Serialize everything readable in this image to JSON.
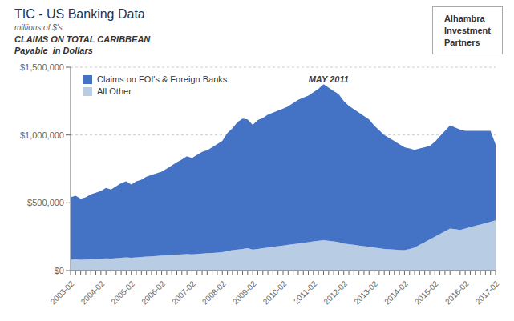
{
  "chart_data": {
    "type": "area",
    "title": "TIC - US Banking Data",
    "subtitle": [
      "millions of $'s",
      "CLAIMS ON TOTAL CARIBBEAN",
      "Payable  in Dollars"
    ],
    "annotations": [
      {
        "text": "MAY 2011",
        "index": 51
      },
      {
        "text": "Alhambra"
      },
      {
        "text": "Investment"
      },
      {
        "text": "Partners"
      }
    ],
    "stacked": true,
    "grid": true,
    "legend": "upper left",
    "categories": [
      "2003-02",
      null,
      null,
      null,
      null,
      null,
      "2004-02",
      null,
      null,
      null,
      null,
      null,
      "2005-02",
      null,
      null,
      null,
      null,
      null,
      "2006-02",
      null,
      null,
      null,
      null,
      null,
      "2007-02",
      null,
      null,
      null,
      null,
      null,
      "2008-02",
      null,
      null,
      null,
      null,
      null,
      "2009-02",
      null,
      null,
      null,
      null,
      null,
      "2010-02",
      null,
      null,
      null,
      null,
      null,
      "2011-02",
      null,
      null,
      null,
      null,
      null,
      "2012-02",
      null,
      null,
      null,
      null,
      null,
      "2013-02",
      null,
      null,
      null,
      null,
      null,
      "2014-02",
      null,
      null,
      null,
      null,
      null,
      "2015-02",
      null,
      null,
      null,
      null,
      null,
      "2016-02",
      null,
      null,
      null,
      null,
      null,
      "2017-02"
    ],
    "series": [
      {
        "name": "All Other",
        "color": "#B8CCE4",
        "values": [
          80000,
          82000,
          80000,
          81000,
          83000,
          85000,
          87000,
          90000,
          88000,
          92000,
          95000,
          98000,
          95000,
          98000,
          100000,
          103000,
          105000,
          108000,
          110000,
          112000,
          115000,
          118000,
          120000,
          123000,
          120000,
          123000,
          126000,
          128000,
          130000,
          133000,
          136000,
          145000,
          150000,
          155000,
          160000,
          165000,
          155000,
          160000,
          165000,
          170000,
          175000,
          180000,
          185000,
          190000,
          195000,
          200000,
          205000,
          210000,
          215000,
          220000,
          225000,
          220000,
          215000,
          210000,
          200000,
          195000,
          190000,
          185000,
          180000,
          175000,
          170000,
          165000,
          160000,
          158000,
          155000,
          152000,
          150000,
          160000,
          170000,
          190000,
          210000,
          230000,
          250000,
          270000,
          290000,
          310000,
          305000,
          300000,
          310000,
          320000,
          330000,
          340000,
          350000,
          360000,
          370000
        ]
      },
      {
        "name": "Claims on FOI's & Foreign Banks",
        "color": "#4472C4",
        "values": [
          460000,
          470000,
          450000,
          460000,
          480000,
          490000,
          500000,
          520000,
          510000,
          530000,
          550000,
          560000,
          540000,
          560000,
          570000,
          590000,
          600000,
          610000,
          620000,
          640000,
          660000,
          680000,
          700000,
          720000,
          710000,
          730000,
          750000,
          760000,
          780000,
          800000,
          820000,
          870000,
          900000,
          940000,
          960000,
          950000,
          920000,
          950000,
          960000,
          980000,
          990000,
          1000000,
          1010000,
          1020000,
          1040000,
          1060000,
          1070000,
          1080000,
          1100000,
          1120000,
          1150000,
          1130000,
          1110000,
          1090000,
          1050000,
          1020000,
          1000000,
          980000,
          960000,
          940000,
          900000,
          870000,
          840000,
          820000,
          800000,
          780000,
          760000,
          740000,
          720000,
          710000,
          700000,
          690000,
          700000,
          720000,
          740000,
          760000,
          750000,
          740000,
          720000,
          710000,
          700000,
          690000,
          680000,
          670000,
          560000
        ]
      }
    ],
    "ylim": [
      0,
      1500000
    ],
    "yticks": [
      {
        "value": 0,
        "label": "$0"
      },
      {
        "value": 500000,
        "label": "$500,000"
      },
      {
        "value": 1000000,
        "label": "$1,000,000"
      },
      {
        "value": 1500000,
        "label": "$1,500,000"
      }
    ]
  }
}
